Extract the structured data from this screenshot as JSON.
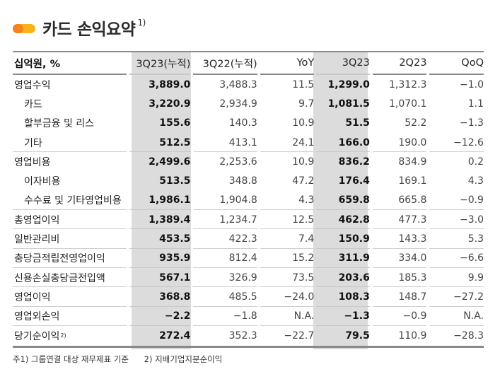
{
  "header": {
    "title": "카드 손익요약",
    "title_footnote": "1)",
    "accent_colors": [
      "#f5821f",
      "#fbb11a"
    ]
  },
  "table": {
    "columns": [
      "십억원, %",
      "3Q23(누적)",
      "3Q22(누적)",
      "YoY",
      "3Q23",
      "2Q23",
      "QoQ"
    ],
    "rows": [
      {
        "label": "영업수익",
        "indent": false,
        "values": [
          "3,889.0",
          "3,488.3",
          "11.5",
          "1,299.0",
          "1,312.3",
          "−1.0"
        ]
      },
      {
        "label": "카드",
        "indent": true,
        "values": [
          "3,220.9",
          "2,934.9",
          "9.7",
          "1,081.5",
          "1,070.1",
          "1.1"
        ]
      },
      {
        "label": "할부금융 및 리스",
        "indent": true,
        "values": [
          "155.6",
          "140.3",
          "10.9",
          "51.5",
          "52.2",
          "−1.3"
        ]
      },
      {
        "label": "기타",
        "indent": true,
        "values": [
          "512.5",
          "413.1",
          "24.1",
          "166.0",
          "190.0",
          "−12.6"
        ]
      },
      {
        "label": "영업비용",
        "indent": false,
        "values": [
          "2,499.6",
          "2,253.6",
          "10.9",
          "836.2",
          "834.9",
          "0.2"
        ]
      },
      {
        "label": "이자비용",
        "indent": true,
        "values": [
          "513.5",
          "348.8",
          "47.2",
          "176.4",
          "169.1",
          "4.3"
        ]
      },
      {
        "label": "수수료 및 기타영업비용",
        "indent": true,
        "values": [
          "1,986.1",
          "1,904.8",
          "4.3",
          "659.8",
          "665.8",
          "−0.9"
        ]
      },
      {
        "label": "총영업이익",
        "indent": false,
        "values": [
          "1,389.4",
          "1,234.7",
          "12.5",
          "462.8",
          "477.3",
          "−3.0"
        ]
      },
      {
        "label": "일반관리비",
        "indent": false,
        "values": [
          "453.5",
          "422.3",
          "7.4",
          "150.9",
          "143.3",
          "5.3"
        ]
      },
      {
        "label": "충당금적립전영업이익",
        "indent": false,
        "values": [
          "935.9",
          "812.4",
          "15.2",
          "311.9",
          "334.0",
          "−6.6"
        ]
      },
      {
        "label": "신용손실충당금전입액",
        "indent": false,
        "values": [
          "567.1",
          "326.9",
          "73.5",
          "203.6",
          "185.3",
          "9.9"
        ]
      },
      {
        "label": "영업이익",
        "indent": false,
        "values": [
          "368.8",
          "485.5",
          "−24.0",
          "108.3",
          "148.7",
          "−27.2"
        ]
      },
      {
        "label": "영업외손익",
        "indent": false,
        "values": [
          "−2.2",
          "−1.8",
          "N.A.",
          "−1.3",
          "−0.9",
          "N.A."
        ]
      },
      {
        "label": "당기순이익",
        "label_sup": "2)",
        "indent": false,
        "values": [
          "272.4",
          "352.3",
          "−22.7",
          "79.5",
          "110.9",
          "−28.3"
        ]
      }
    ]
  },
  "footnotes": [
    "주1) 그룹연결 대상 재무제표 기준",
    "2) 지배기업지분순이익"
  ]
}
